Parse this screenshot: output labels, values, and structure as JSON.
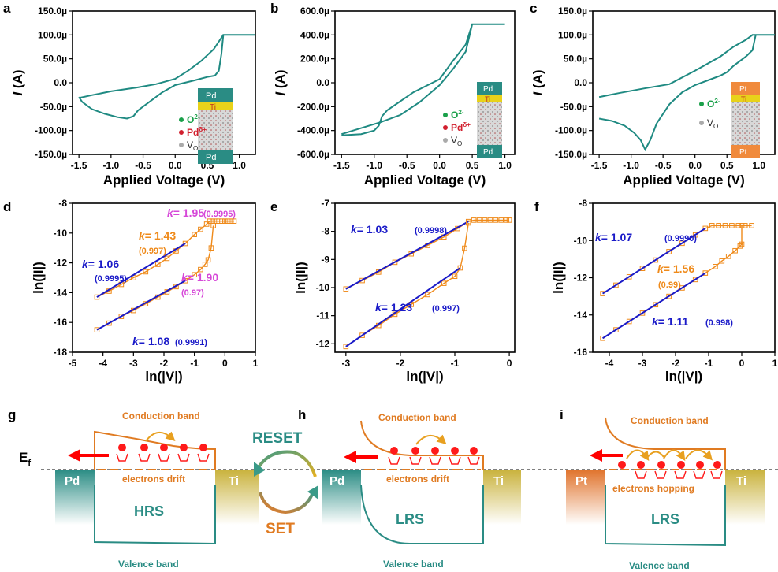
{
  "panel_labels": [
    "a",
    "b",
    "c",
    "d",
    "e",
    "f",
    "g",
    "h",
    "i"
  ],
  "iv_common": {
    "xlabel": "Applied Voltage (V)",
    "ylabel_italic": "I",
    "ylabel_unit": " (A)",
    "xticks": [
      "-1.5",
      "-1.0",
      "-0.5",
      "0.0",
      "0.5",
      "1.0"
    ]
  },
  "loglog_common": {
    "xlabel": "ln(|V|)",
    "ylabel": "ln(|I|)"
  },
  "colors": {
    "iv": "#1f8a82",
    "fit": "#1a1ac8",
    "data": "#ef8a1a",
    "o2": "#1aa04a",
    "pd": "#d11f2e",
    "magenta": "#d648d8",
    "vo": "#888888",
    "teal": "#2a8c84",
    "orange": "#e07b22",
    "red": "#ff0000"
  },
  "device_labels": {
    "a": {
      "top": "Pd",
      "mid": "Ti",
      "bot": "Pd"
    },
    "b": {
      "top": "Pd",
      "mid": "Ti",
      "bot": "Pd"
    },
    "c": {
      "top": "Pt",
      "mid": "Ti",
      "bot": "Pt"
    }
  },
  "legends": {
    "o2": "O",
    "o2_sup": "2-",
    "pd": "Pd",
    "pd_sup": "δ+",
    "vo": "V",
    "vo_sub": "O"
  },
  "chart_data": [
    {
      "panel": "a",
      "type": "line",
      "xlabel": "Applied Voltage (V)",
      "ylabel": "I (A)",
      "xlim": [
        -1.6,
        1.25
      ],
      "ylim": [
        -0.00015,
        0.00015
      ],
      "yticks": [
        "150.0µ",
        "100.0µ",
        "50.0µ",
        "0.0",
        "-50.0µ",
        "-100.0µ",
        "-150.0µ"
      ],
      "x": [
        -1.5,
        -1.45,
        -1.3,
        -1.1,
        -0.9,
        -0.75,
        -0.65,
        -0.58,
        -0.5,
        -0.2,
        0.0,
        0.3,
        0.5,
        0.62,
        0.68,
        0.72,
        0.75,
        1.25,
        0.75,
        0.7,
        0.6,
        0.4,
        0.2,
        0.0,
        -0.3,
        -0.6,
        -1.0,
        -1.3,
        -1.5
      ],
      "y": [
        -3e-05,
        -4e-05,
        -5.5e-05,
        -6.5e-05,
        -7.2e-05,
        -7.5e-05,
        -7e-05,
        -5.8e-05,
        -5e-05,
        -2e-05,
        -5e-06,
        5e-06,
        1.2e-05,
        1.5e-05,
        2.5e-05,
        6e-05,
        0.0001,
        0.0001,
        0.0001,
        9e-05,
        7e-05,
        4.5e-05,
        2.5e-05,
        8e-06,
        -3e-06,
        -1e-05,
        -1.8e-05,
        -2.6e-05,
        -3.2e-05
      ]
    },
    {
      "panel": "b",
      "type": "line",
      "xlabel": "Applied Voltage (V)",
      "ylabel": "I (A)",
      "xlim": [
        -1.6,
        1.15
      ],
      "ylim": [
        -0.0006,
        0.0006
      ],
      "yticks": [
        "600.0µ",
        "400.0µ",
        "200.0µ",
        "0.0",
        "-200.0µ",
        "-400.0µ",
        "-600.0µ"
      ],
      "x": [
        -1.5,
        -1.2,
        -0.9,
        -0.6,
        -0.3,
        0.0,
        0.2,
        0.4,
        0.5,
        1.0,
        0.5,
        0.4,
        0.2,
        0.0,
        -0.4,
        -0.8,
        -0.88,
        -0.93,
        -1.0,
        -1.2,
        -1.5
      ],
      "y": [
        -0.00043,
        -0.00038,
        -0.00033,
        -0.00027,
        -0.00016,
        -2e-05,
        0.00011,
        0.00026,
        0.00049,
        0.00049,
        0.00049,
        0.00032,
        0.00018,
        3e-05,
        -8e-05,
        -0.00023,
        -0.00028,
        -0.00036,
        -0.0004,
        -0.00043,
        -0.00044
      ]
    },
    {
      "panel": "c",
      "type": "line",
      "xlabel": "Applied Voltage (V)",
      "ylabel": "I (A)",
      "xlim": [
        -1.6,
        1.25
      ],
      "ylim": [
        -0.00015,
        0.00015
      ],
      "yticks": [
        "150.0µ",
        "100.0µ",
        "50.0µ",
        "0.0",
        "-50.0µ",
        "-100.0µ",
        "-150.0µ"
      ],
      "x": [
        -1.5,
        -1.3,
        -1.1,
        -0.95,
        -0.85,
        -0.78,
        -0.7,
        -0.6,
        -0.4,
        -0.2,
        0.0,
        0.2,
        0.4,
        0.5,
        0.6,
        0.8,
        0.9,
        0.95,
        1.25,
        0.9,
        0.8,
        0.6,
        0.4,
        0.0,
        -0.4,
        -0.8,
        -1.2,
        -1.5
      ],
      "y": [
        -7.5e-05,
        -8e-05,
        -9e-05,
        -0.000105,
        -0.00012,
        -0.00014,
        -0.00012,
        -8.5e-05,
        -4.5e-05,
        -2e-05,
        -5e-06,
        5e-06,
        1.5e-05,
        2.2e-05,
        3.5e-05,
        5.5e-05,
        6.8e-05,
        0.0001,
        0.0001,
        0.0001,
        9e-05,
        7.5e-05,
        5.5e-05,
        2.5e-05,
        -3e-06,
        -1.2e-05,
        -2.2e-05,
        -3e-05
      ]
    },
    {
      "panel": "d",
      "type": "scatter",
      "xlabel": "ln(|V|)",
      "ylabel": "ln(|I|)",
      "xlim": [
        -5,
        1
      ],
      "ylim": [
        -18,
        -8
      ],
      "xticks": [
        "-5",
        "-4",
        "-3",
        "-2",
        "-1",
        "0",
        "1"
      ],
      "yticks": [
        "-8",
        "-10",
        "-12",
        "-14",
        "-16",
        "-18"
      ],
      "upper": {
        "x": [
          -4.2,
          -3.8,
          -3.4,
          -3.0,
          -2.6,
          -2.2,
          -1.9,
          -1.6,
          -1.3,
          -1.0,
          -0.8,
          -0.6,
          -0.5,
          -0.4,
          -0.3,
          -0.2,
          -0.1,
          0.0,
          0.1,
          0.2,
          0.3
        ],
        "y": [
          -14.3,
          -13.9,
          -13.45,
          -13.0,
          -12.6,
          -12.1,
          -11.7,
          -11.2,
          -10.7,
          -10.1,
          -9.75,
          -9.4,
          -9.2,
          -9.2,
          -9.2,
          -9.2,
          -9.2,
          -9.2,
          -9.2,
          -9.2,
          -9.2
        ]
      },
      "lower": {
        "x": [
          -4.2,
          -3.8,
          -3.4,
          -3.0,
          -2.6,
          -2.2,
          -1.9,
          -1.6,
          -1.3,
          -1.0,
          -0.8,
          -0.65,
          -0.55,
          -0.45,
          -0.38
        ],
        "y": [
          -16.5,
          -16.05,
          -15.6,
          -15.2,
          -14.75,
          -14.3,
          -13.95,
          -13.6,
          -13.2,
          -12.8,
          -12.45,
          -12.1,
          -11.8,
          -11.0,
          -9.5
        ]
      },
      "annotations": [
        {
          "k": "1.06",
          "r2": "(0.9995)",
          "color": "#1a1ac8"
        },
        {
          "k": "1.43",
          "r2": "(0.997)",
          "color": "#ef8a1a"
        },
        {
          "k": "1.95",
          "r2": "(0.9995)",
          "color": "#d648d8"
        },
        {
          "k": "1.90",
          "r2": "(0.97)",
          "color": "#d648d8"
        },
        {
          "k": "1.08",
          "r2": "(0.9991)",
          "color": "#1a1ac8"
        }
      ]
    },
    {
      "panel": "e",
      "type": "scatter",
      "xlabel": "ln(|V|)",
      "ylabel": "ln(|I|)",
      "xlim": [
        -3.2,
        0.1
      ],
      "ylim": [
        -12.3,
        -7
      ],
      "xticks": [
        "-3",
        "-2",
        "-1",
        "0"
      ],
      "yticks": [
        "-7",
        "-8",
        "-9",
        "-10",
        "-11",
        "-12"
      ],
      "upper": {
        "x": [
          -3.0,
          -2.7,
          -2.4,
          -2.1,
          -1.8,
          -1.5,
          -1.2,
          -0.95,
          -0.75,
          -0.65,
          -0.55,
          -0.45,
          -0.35,
          -0.25,
          -0.15,
          -0.05,
          0.0
        ],
        "y": [
          -10.05,
          -9.75,
          -9.45,
          -9.1,
          -8.8,
          -8.5,
          -8.2,
          -7.9,
          -7.65,
          -7.6,
          -7.6,
          -7.6,
          -7.6,
          -7.6,
          -7.6,
          -7.6,
          -7.6
        ]
      },
      "lower": {
        "x": [
          -3.0,
          -2.7,
          -2.4,
          -2.1,
          -1.8,
          -1.5,
          -1.2,
          -1.0,
          -0.9,
          -0.82,
          -0.75
        ],
        "y": [
          -12.1,
          -11.7,
          -11.35,
          -10.95,
          -10.6,
          -10.25,
          -9.85,
          -9.6,
          -9.3,
          -8.6,
          -7.7
        ]
      },
      "annotations": [
        {
          "k": "1.03",
          "r2": "(0.9998)",
          "color": "#1a1ac8"
        },
        {
          "k": "1.23",
          "r2": "(0.997)",
          "color": "#1a1ac8"
        }
      ]
    },
    {
      "panel": "f",
      "type": "scatter",
      "xlabel": "ln(|V|)",
      "ylabel": "ln(|I|)",
      "xlim": [
        -4.5,
        1
      ],
      "ylim": [
        -16,
        -8
      ],
      "xticks": [
        "-4",
        "-3",
        "-2",
        "-1",
        "0",
        "1"
      ],
      "yticks": [
        "-8",
        "-10",
        "-12",
        "-14",
        "-16"
      ],
      "upper": {
        "x": [
          -4.2,
          -3.8,
          -3.4,
          -3.0,
          -2.6,
          -2.2,
          -1.8,
          -1.4,
          -1.1,
          -0.9,
          -0.7,
          -0.5,
          -0.3,
          -0.1,
          0.1,
          0.3
        ],
        "y": [
          -12.85,
          -12.4,
          -11.95,
          -11.5,
          -11.05,
          -10.6,
          -10.15,
          -9.7,
          -9.35,
          -9.2,
          -9.2,
          -9.2,
          -9.2,
          -9.2,
          -9.2,
          -9.2
        ]
      },
      "lower": {
        "x": [
          -4.2,
          -3.8,
          -3.4,
          -3.0,
          -2.6,
          -2.2,
          -1.8,
          -1.4,
          -1.1,
          -0.8,
          -0.6,
          -0.4,
          -0.2,
          -0.05,
          0.0,
          0.0
        ],
        "y": [
          -15.25,
          -14.8,
          -14.35,
          -13.9,
          -13.45,
          -13.0,
          -12.55,
          -12.1,
          -11.75,
          -11.4,
          -11.1,
          -10.85,
          -10.55,
          -10.3,
          -10.2,
          -9.2
        ]
      },
      "annotations": [
        {
          "k": "1.07",
          "r2": "(0.9990)",
          "color": "#1a1ac8"
        },
        {
          "k": "1.56",
          "r2": "(0.99)",
          "color": "#ef8a1a"
        },
        {
          "k": "1.11",
          "r2": "(0.998)",
          "color": "#1a1ac8"
        }
      ]
    }
  ],
  "band_common": {
    "conduction": "Conduction band",
    "valence": "Valence band"
  },
  "band_panels": [
    {
      "panel": "g",
      "left": "Pd",
      "right": "Ti",
      "state": "HRS",
      "mechanism": "electrons drift"
    },
    {
      "panel": "h",
      "left": "Pd",
      "right": "Ti",
      "state": "LRS",
      "mechanism": "electrons drift"
    },
    {
      "panel": "i",
      "left": "Pt",
      "right": "Ti",
      "state": "LRS",
      "mechanism": "electrons hopping"
    }
  ],
  "ef": {
    "main": "E",
    "sub": "f"
  },
  "switch": {
    "reset": "RESET",
    "set": "SET"
  }
}
